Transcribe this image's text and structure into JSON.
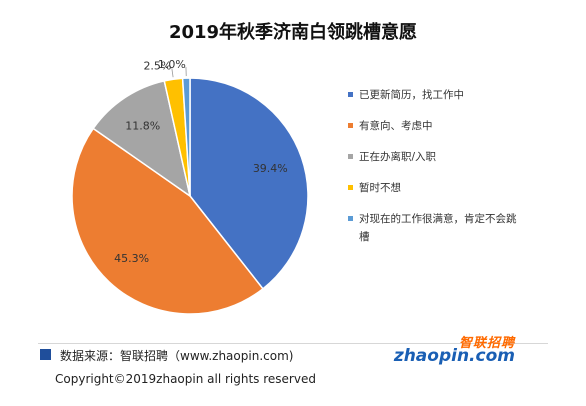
{
  "chart_data": {
    "type": "pie",
    "title": "2019年秋季济南白领跳槽意愿",
    "slices": [
      {
        "label": "已更新简历，找工作中",
        "value": 39.4,
        "display": "39.4%",
        "color": "#4472C4"
      },
      {
        "label": "有意向、考虑中",
        "value": 45.3,
        "display": "45.3%",
        "color": "#ED7D31"
      },
      {
        "label": "正在办离职/入职",
        "value": 11.8,
        "display": "11.8%",
        "color": "#A5A5A5"
      },
      {
        "label": "暂时不想",
        "value": 2.5,
        "display": "2.5%",
        "color": "#FFC000"
      },
      {
        "label": "对现在的工作很满意，肯定不会跳槽",
        "value": 1.0,
        "display": "1.0%",
        "color": "#5B9BD5"
      }
    ],
    "legend_position": "right",
    "legend_lines": [
      [
        "已更新简历，找工作中"
      ],
      [
        "有意向、考虑中"
      ],
      [
        "正在办离职/入职"
      ],
      [
        "暂时不想"
      ],
      [
        "对现在的工作很满意，肯定不会跳",
        "槽"
      ]
    ]
  },
  "footer": {
    "source": "数据来源：智联招聘（www.zhaopin.com)",
    "copyright": "Copyright©2019zhaopin all rights reserved",
    "brand_cn": "智联招聘",
    "brand_en": "zhaopin.com",
    "source_mark_color": "#1F4E9B"
  }
}
